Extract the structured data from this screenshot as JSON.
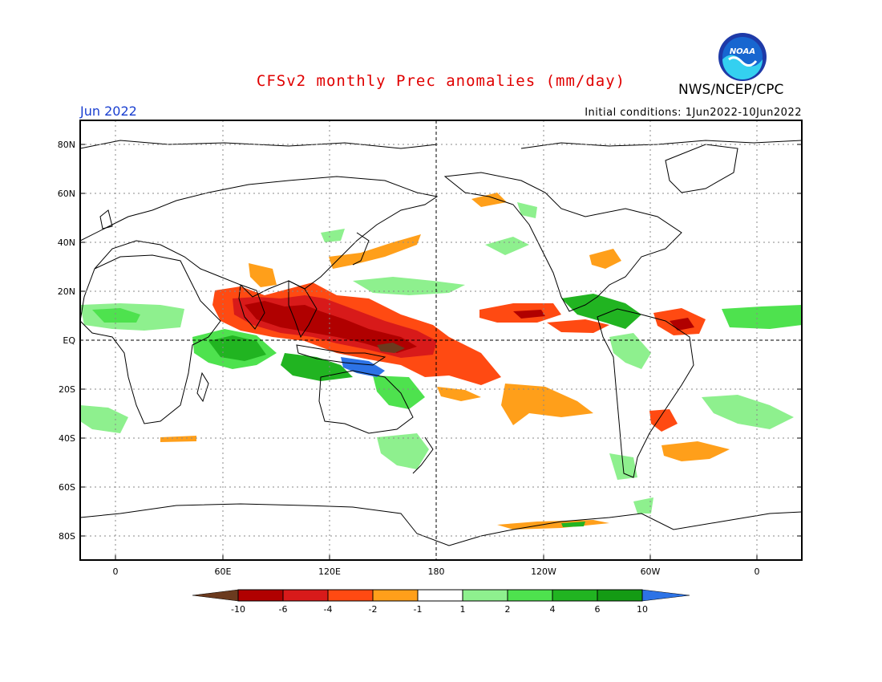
{
  "header": {
    "title": "CFSv2 monthly Prec anomalies (mm/day)",
    "agency": "NWS/NCEP/CPC",
    "logo_text": "NOAA",
    "month": "Jun 2022",
    "initial_conditions": "Initial conditions: 1Jun2022-10Jun2022"
  },
  "map": {
    "lat_labels": [
      "80N",
      "60N",
      "40N",
      "20N",
      "EQ",
      "20S",
      "40S",
      "60S",
      "80S"
    ],
    "lon_labels": [
      "0",
      "60E",
      "120E",
      "180",
      "120W",
      "60W",
      "0"
    ],
    "lon_range": [
      -20,
      380
    ],
    "lat_range": [
      -90,
      90
    ],
    "grid": true,
    "dateline_lon": 180
  },
  "colorbar": {
    "ticks": [
      "-10",
      "-6",
      "-4",
      "-2",
      "-1",
      "1",
      "2",
      "4",
      "6",
      "10"
    ],
    "colors": [
      "#6b3a1e",
      "#b00000",
      "#d81a1a",
      "#ff4a12",
      "#ff9f1a",
      "#ffffff",
      "#8ef08e",
      "#4ee24e",
      "#21b421",
      "#149b14",
      "#2d73e6"
    ]
  },
  "anomaly_colors": {
    "strong_dry": "#b00000",
    "dry": "#d81a1a",
    "moderate_dry": "#ff4a12",
    "slight_dry": "#ff9f1a",
    "slight_wet": "#8ef08e",
    "wet": "#4ee24e",
    "very_wet": "#21b421",
    "extreme_wet": "#2d73e6"
  }
}
